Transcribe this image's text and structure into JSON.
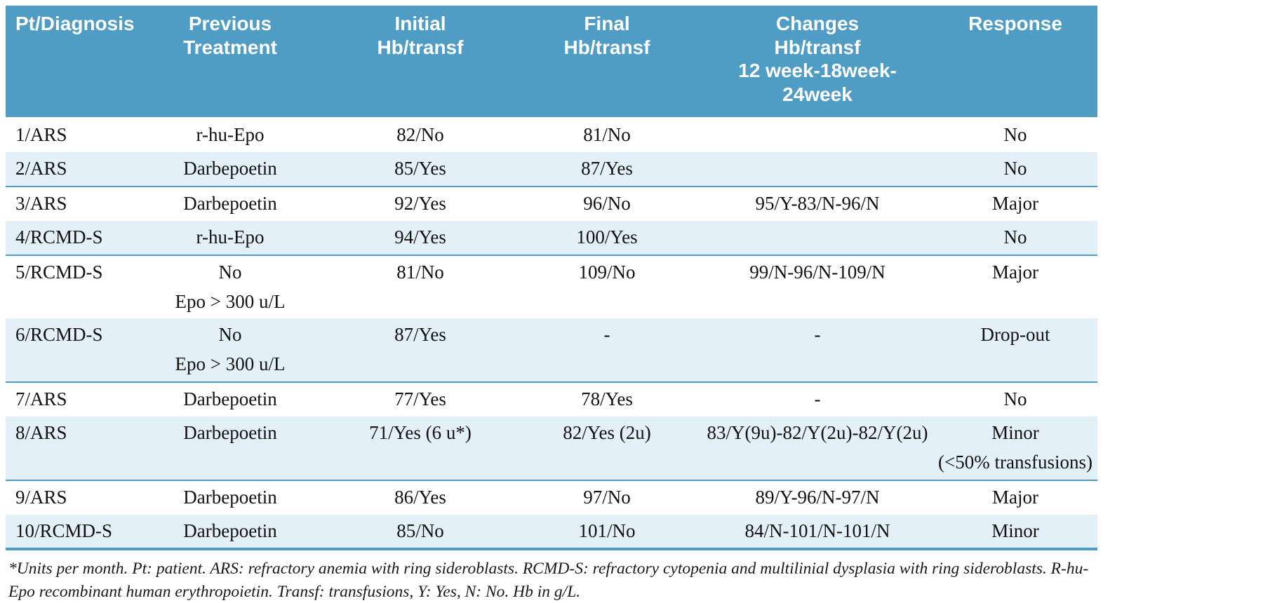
{
  "colors": {
    "header_bg": "#4f9dc4",
    "row_alt_bg": "#e4f0f7",
    "rule_blue": "#4f9dc4",
    "header_text": "#ffffff",
    "body_text": "#121212"
  },
  "table": {
    "headers": [
      "Pt/Diagnosis",
      "Previous\nTreatment",
      "Initial\nHb/transf",
      "Final\nHb/transf",
      "Changes\nHb/transf\n12 week-18week-24week",
      "Response"
    ],
    "rows": [
      [
        "1/ARS",
        "r-hu-Epo",
        "82/No",
        "81/No",
        "",
        "No"
      ],
      [
        "2/ARS",
        "Darbepoetin",
        "85/Yes",
        "87/Yes",
        "",
        "No"
      ],
      [
        "3/ARS",
        "Darbepoetin",
        "92/Yes",
        "96/No",
        "95/Y-83/N-96/N",
        "Major"
      ],
      [
        "4/RCMD-S",
        "r-hu-Epo",
        "94/Yes",
        "100/Yes",
        "",
        "No"
      ],
      [
        "5/RCMD-S",
        "No\nEpo > 300 u/L",
        "81/No",
        "109/No",
        "99/N-96/N-109/N",
        "Major"
      ],
      [
        "6/RCMD-S",
        "No\nEpo > 300 u/L",
        "87/Yes",
        "-",
        "-",
        "Drop-out"
      ],
      [
        "7/ARS",
        "Darbepoetin",
        "77/Yes",
        "78/Yes",
        "-",
        "No"
      ],
      [
        "8/ARS",
        "Darbepoetin",
        "71/Yes (6 u*)",
        "82/Yes (2u)",
        "83/Y(9u)-82/Y(2u)-82/Y(2u)",
        "Minor\n(<50% transfusions)"
      ],
      [
        "9/ARS",
        "Darbepoetin",
        "86/Yes",
        "97/No",
        "89/Y-96/N-97/N",
        "Major"
      ],
      [
        "10/RCMD-S",
        "Darbepoetin",
        "85/No",
        "101/No",
        "84/N-101/N-101/N",
        "Minor"
      ]
    ]
  },
  "footnote": {
    "text": "*Units per month. Pt: patient. ARS: refractory anemia with ring sideroblasts. RCMD-S: refractory cytopenia and multilinial dysplasia with ring sideroblasts. R-hu-Epo recombinant human erythropoietin. Transf: transfusions, Y: Yes, N: No. Hb in g/L."
  }
}
